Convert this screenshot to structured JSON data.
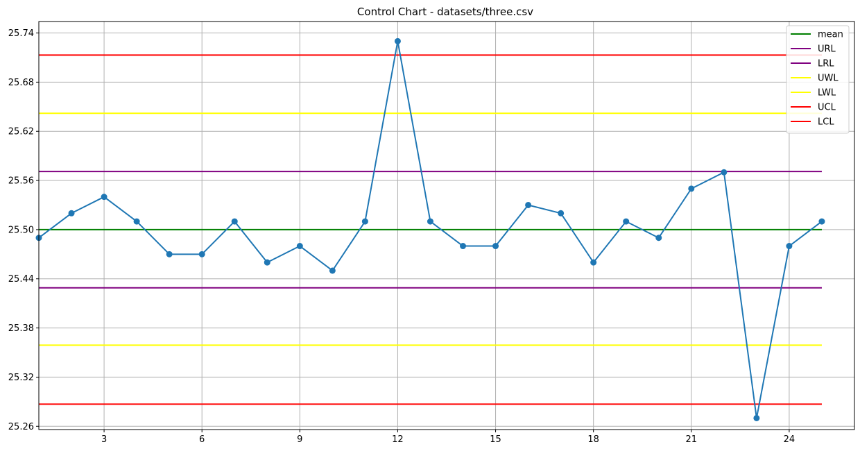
{
  "chart_data": {
    "type": "line",
    "title": "Control Chart - datasets/three.csv",
    "xlabel": "",
    "ylabel": "",
    "xlim": [
      1,
      26
    ],
    "ylim": [
      25.256,
      25.754
    ],
    "xticks": [
      3,
      6,
      9,
      12,
      15,
      18,
      21,
      24
    ],
    "yticks": [
      25.26,
      25.32,
      25.38,
      25.44,
      25.5,
      25.56,
      25.62,
      25.68,
      25.74
    ],
    "grid": true,
    "legend_position": "top-right",
    "series": [
      {
        "color": "#1f77b4",
        "x": [
          1,
          2,
          3,
          4,
          5,
          6,
          7,
          8,
          9,
          10,
          11,
          12,
          13,
          14,
          15,
          16,
          17,
          18,
          19,
          20,
          21,
          22,
          23,
          24,
          25
        ],
        "values": [
          25.49,
          25.52,
          25.54,
          25.51,
          25.47,
          25.47,
          25.51,
          25.46,
          25.48,
          25.45,
          25.51,
          25.73,
          25.51,
          25.48,
          25.48,
          25.53,
          25.52,
          25.46,
          25.51,
          25.49,
          25.55,
          25.57,
          25.27,
          25.48,
          25.51
        ]
      }
    ],
    "reference_lines": [
      {
        "name": "mean",
        "value": 25.5,
        "color": "#008000"
      },
      {
        "name": "URL",
        "value": 25.571,
        "color": "#800080"
      },
      {
        "name": "LRL",
        "value": 25.429,
        "color": "#800080"
      },
      {
        "name": "UWL",
        "value": 25.642,
        "color": "#ffff00"
      },
      {
        "name": "LWL",
        "value": 25.359,
        "color": "#ffff00"
      },
      {
        "name": "UCL",
        "value": 25.713,
        "color": "#ff0000"
      },
      {
        "name": "LCL",
        "value": 25.287,
        "color": "#ff0000"
      }
    ],
    "ref_x_range": [
      1,
      25
    ]
  }
}
